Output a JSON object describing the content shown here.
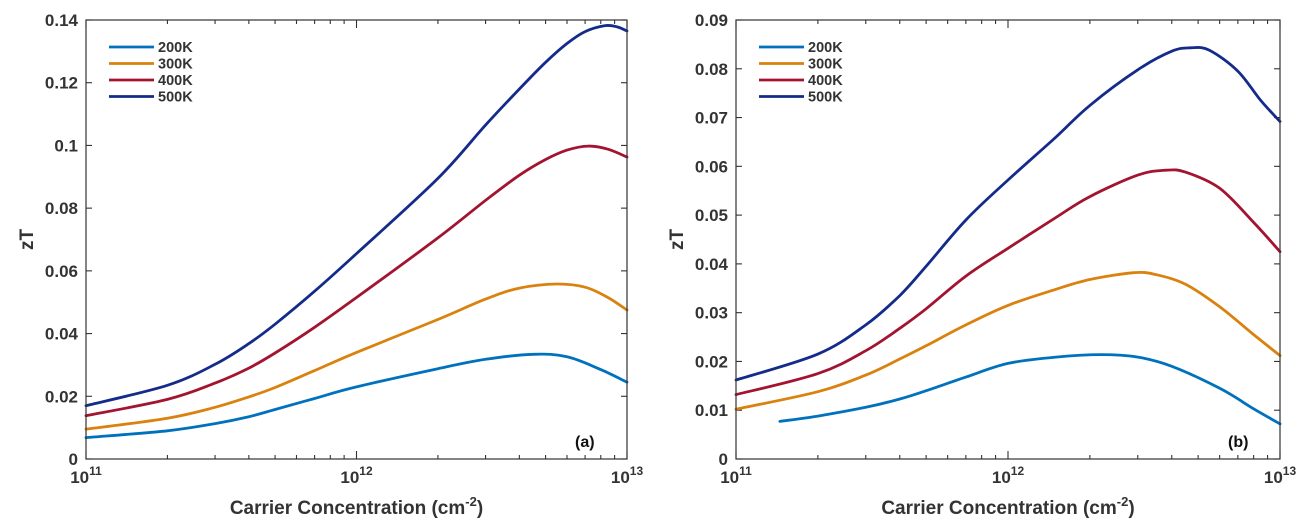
{
  "figure": {
    "colors": {
      "200K": "#0072BD",
      "300K": "#D9820F",
      "400K": "#A2142F",
      "500K": "#142B8A",
      "axis": "#333333"
    }
  },
  "chart_data": [
    {
      "type": "line",
      "panel_label": "(a)",
      "title": "",
      "xlabel": "Carrier Concentration (cm",
      "xlabel_sup": "-2",
      "xlabel_close": ")",
      "ylabel": "zT",
      "xscale": "log",
      "xlim": [
        100000000000.0,
        10000000000000.0
      ],
      "ylim": [
        0,
        0.14
      ],
      "x_ticks": [
        {
          "value": 100000000000.0,
          "base": "10",
          "exp": "11"
        },
        {
          "value": 1000000000000.0,
          "base": "10",
          "exp": "12"
        },
        {
          "value": 10000000000000.0,
          "base": "10",
          "exp": "13"
        }
      ],
      "y_ticks": [
        {
          "value": 0,
          "label": "0"
        },
        {
          "value": 0.02,
          "label": "0.02"
        },
        {
          "value": 0.04,
          "label": "0.04"
        },
        {
          "value": 0.06,
          "label": "0.06"
        },
        {
          "value": 0.08,
          "label": "0.08"
        },
        {
          "value": 0.1,
          "label": "0.1"
        },
        {
          "value": 0.12,
          "label": "0.12"
        },
        {
          "value": 0.14,
          "label": "0.14"
        }
      ],
      "legend": {
        "position": "top-left"
      },
      "series": [
        {
          "name": "200K",
          "color": "#0072BD",
          "x": [
            100000000000.0,
            200000000000.0,
            300000000000.0,
            400000000000.0,
            500000000000.0,
            700000000000.0,
            1000000000000.0,
            2000000000000.0,
            3000000000000.0,
            4500000000000.0,
            6000000000000.0,
            8000000000000.0,
            10000000000000.0
          ],
          "y": [
            0.0068,
            0.009,
            0.0113,
            0.0135,
            0.0158,
            0.0193,
            0.023,
            0.0288,
            0.0318,
            0.0334,
            0.0326,
            0.0285,
            0.0245
          ]
        },
        {
          "name": "300K",
          "color": "#D9820F",
          "x": [
            100000000000.0,
            200000000000.0,
            300000000000.0,
            400000000000.0,
            500000000000.0,
            700000000000.0,
            1000000000000.0,
            2000000000000.0,
            3000000000000.0,
            4000000000000.0,
            5500000000000.0,
            7000000000000.0,
            8500000000000.0,
            10000000000000.0
          ],
          "y": [
            0.0095,
            0.013,
            0.0165,
            0.0198,
            0.0228,
            0.0282,
            0.034,
            0.0445,
            0.051,
            0.0545,
            0.0558,
            0.0548,
            0.0515,
            0.0475
          ]
        },
        {
          "name": "400K",
          "color": "#A2142F",
          "x": [
            100000000000.0,
            200000000000.0,
            300000000000.0,
            400000000000.0,
            500000000000.0,
            700000000000.0,
            1000000000000.0,
            2000000000000.0,
            3000000000000.0,
            4000000000000.0,
            5000000000000.0,
            6000000000000.0,
            7200000000000.0,
            8500000000000.0,
            10000000000000.0
          ],
          "y": [
            0.0138,
            0.019,
            0.0242,
            0.029,
            0.0338,
            0.042,
            0.0515,
            0.0705,
            0.0825,
            0.0905,
            0.0955,
            0.0985,
            0.0998,
            0.0988,
            0.0963
          ]
        },
        {
          "name": "500K",
          "color": "#142B8A",
          "x": [
            100000000000.0,
            200000000000.0,
            300000000000.0,
            400000000000.0,
            500000000000.0,
            700000000000.0,
            1000000000000.0,
            2000000000000.0,
            3000000000000.0,
            4000000000000.0,
            5000000000000.0,
            6000000000000.0,
            7000000000000.0,
            8300000000000.0,
            9200000000000.0,
            10000000000000.0
          ],
          "y": [
            0.017,
            0.0235,
            0.0302,
            0.0368,
            0.043,
            0.0535,
            0.0655,
            0.0895,
            0.1065,
            0.118,
            0.1265,
            0.1325,
            0.1363,
            0.1382,
            0.1378,
            0.1365
          ]
        }
      ]
    },
    {
      "type": "line",
      "panel_label": "(b)",
      "title": "",
      "xlabel": "Carrier Concentration (cm",
      "xlabel_sup": "-2",
      "xlabel_close": ")",
      "ylabel": "zT",
      "xscale": "log",
      "xlim": [
        100000000000.0,
        10000000000000.0
      ],
      "ylim": [
        0,
        0.09
      ],
      "x_ticks": [
        {
          "value": 100000000000.0,
          "base": "10",
          "exp": "11"
        },
        {
          "value": 1000000000000.0,
          "base": "10",
          "exp": "12"
        },
        {
          "value": 10000000000000.0,
          "base": "10",
          "exp": "13"
        }
      ],
      "y_ticks": [
        {
          "value": 0,
          "label": "0"
        },
        {
          "value": 0.01,
          "label": "0.01"
        },
        {
          "value": 0.02,
          "label": "0.02"
        },
        {
          "value": 0.03,
          "label": "0.03"
        },
        {
          "value": 0.04,
          "label": "0.04"
        },
        {
          "value": 0.05,
          "label": "0.05"
        },
        {
          "value": 0.06,
          "label": "0.06"
        },
        {
          "value": 0.07,
          "label": "0.07"
        },
        {
          "value": 0.08,
          "label": "0.08"
        },
        {
          "value": 0.09,
          "label": "0.09"
        }
      ],
      "legend": {
        "position": "top-left"
      },
      "series": [
        {
          "name": "200K",
          "color": "#0072BD",
          "x": [
            145000000000.0,
            200000000000.0,
            300000000000.0,
            400000000000.0,
            500000000000.0,
            700000000000.0,
            1000000000000.0,
            1500000000000.0,
            2200000000000.0,
            3000000000000.0,
            4000000000000.0,
            6000000000000.0,
            8000000000000.0,
            10000000000000.0
          ],
          "y": [
            0.0077,
            0.0088,
            0.0106,
            0.0123,
            0.014,
            0.0168,
            0.0196,
            0.0209,
            0.0214,
            0.0209,
            0.019,
            0.0145,
            0.0103,
            0.0072
          ]
        },
        {
          "name": "300K",
          "color": "#D9820F",
          "x": [
            100000000000.0,
            200000000000.0,
            300000000000.0,
            400000000000.0,
            500000000000.0,
            700000000000.0,
            1000000000000.0,
            1500000000000.0,
            2000000000000.0,
            2900000000000.0,
            3500000000000.0,
            4500000000000.0,
            6000000000000.0,
            8000000000000.0,
            10000000000000.0
          ],
          "y": [
            0.0102,
            0.0138,
            0.0172,
            0.0205,
            0.0232,
            0.0275,
            0.0315,
            0.0348,
            0.0368,
            0.0382,
            0.0378,
            0.0358,
            0.0312,
            0.0255,
            0.0212
          ]
        },
        {
          "name": "400K",
          "color": "#A2142F",
          "x": [
            100000000000.0,
            200000000000.0,
            300000000000.0,
            400000000000.0,
            500000000000.0,
            700000000000.0,
            1000000000000.0,
            1500000000000.0,
            2000000000000.0,
            3000000000000.0,
            3800000000000.0,
            4500000000000.0,
            6000000000000.0,
            8000000000000.0,
            10000000000000.0
          ],
          "y": [
            0.0132,
            0.0175,
            0.0222,
            0.0268,
            0.0308,
            0.0375,
            0.0432,
            0.0495,
            0.0538,
            0.0582,
            0.0592,
            0.0588,
            0.0555,
            0.0485,
            0.0425
          ]
        },
        {
          "name": "500K",
          "color": "#142B8A",
          "x": [
            100000000000.0,
            200000000000.0,
            300000000000.0,
            400000000000.0,
            500000000000.0,
            700000000000.0,
            1000000000000.0,
            1500000000000.0,
            2000000000000.0,
            3000000000000.0,
            4000000000000.0,
            4700000000000.0,
            5500000000000.0,
            7000000000000.0,
            8500000000000.0,
            10000000000000.0
          ],
          "y": [
            0.0162,
            0.0215,
            0.0275,
            0.0335,
            0.0395,
            0.049,
            0.0572,
            0.066,
            0.0725,
            0.0798,
            0.0836,
            0.0843,
            0.0838,
            0.0795,
            0.0735,
            0.0692
          ]
        }
      ]
    }
  ]
}
